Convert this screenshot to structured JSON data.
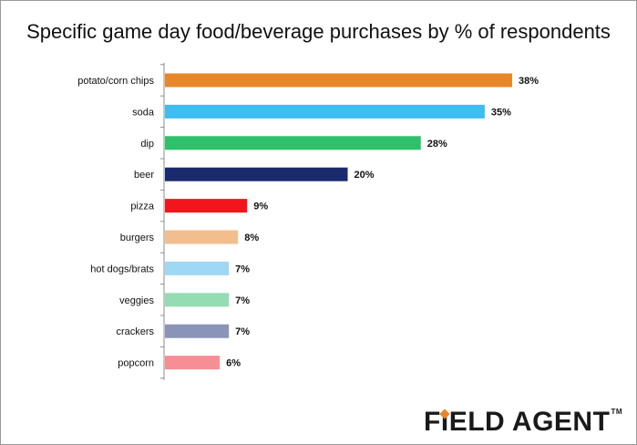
{
  "chart_data": {
    "type": "bar",
    "orientation": "horizontal",
    "title": "Specific game day food/beverage purchases by % of respondents",
    "xlabel": "",
    "ylabel": "",
    "xlim": [
      0,
      40
    ],
    "grid": false,
    "categories": [
      "potato/corn chips",
      "soda",
      "dip",
      "beer",
      "pizza",
      "burgers",
      "hot dogs/brats",
      "veggies",
      "crackers",
      "popcorn"
    ],
    "values": [
      38,
      35,
      28,
      20,
      9,
      8,
      7,
      7,
      7,
      6
    ],
    "value_labels": [
      "38%",
      "35%",
      "28%",
      "20%",
      "9%",
      "8%",
      "7%",
      "7%",
      "7%",
      "6%"
    ],
    "colors": [
      "#e8862a",
      "#3dbdf0",
      "#2ec06a",
      "#1a2a6c",
      "#f2161c",
      "#f2be8e",
      "#9ed8f4",
      "#94dcb2",
      "#8a94b8",
      "#f68f95"
    ]
  },
  "brand": {
    "logo_text": "FIELD AGENT",
    "logo_part1": "F",
    "logo_i": "I",
    "logo_part2": "ELD AGENT",
    "trademark": "TM",
    "accent_color": "#e8862a"
  }
}
